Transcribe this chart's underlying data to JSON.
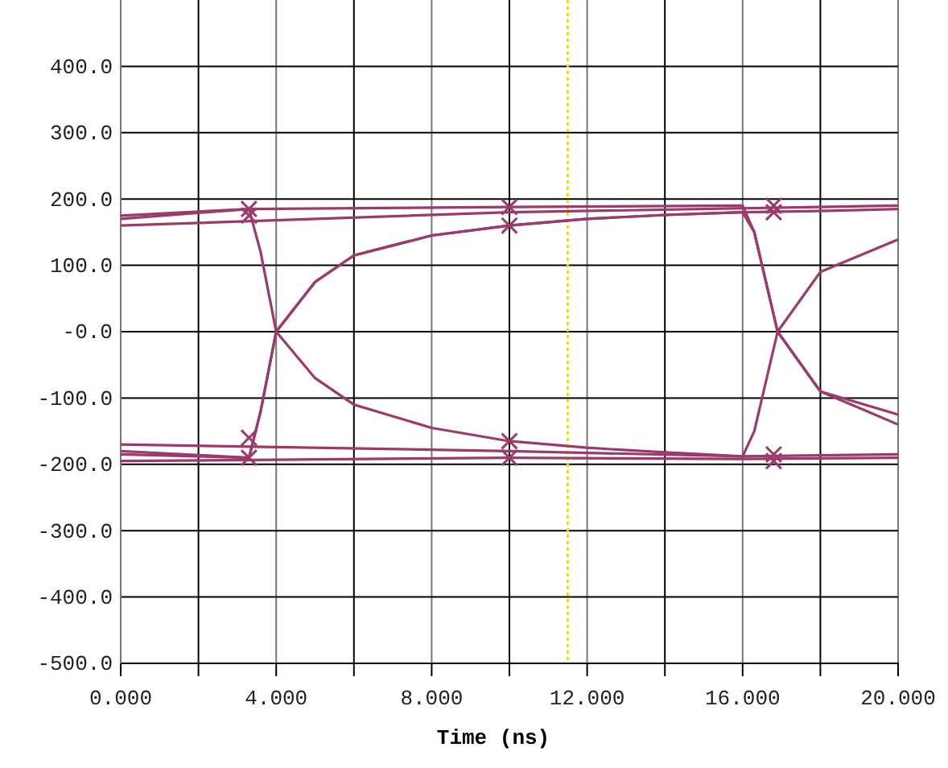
{
  "chart_data": {
    "type": "line",
    "xlabel": "Time (ns)",
    "xlim": [
      0,
      20
    ],
    "xticks": [
      {
        "value": 0,
        "label": "0.000"
      },
      {
        "value": 2,
        "label": null
      },
      {
        "value": 4,
        "label": "4.000"
      },
      {
        "value": 6,
        "label": null
      },
      {
        "value": 8,
        "label": "8.000"
      },
      {
        "value": 10,
        "label": null
      },
      {
        "value": 12,
        "label": "12.000"
      },
      {
        "value": 14,
        "label": null
      },
      {
        "value": 16,
        "label": "16.000"
      },
      {
        "value": 18,
        "label": null
      },
      {
        "value": 20,
        "label": "20.000"
      }
    ],
    "ylim": [
      -500,
      500
    ],
    "yticks": [
      {
        "value": 400,
        "label": "400.0"
      },
      {
        "value": 300,
        "label": "300.0"
      },
      {
        "value": 200,
        "label": "200.0"
      },
      {
        "value": 100,
        "label": "100.0"
      },
      {
        "value": 0,
        "label": "-0.0"
      },
      {
        "value": -100,
        "label": "-100.0"
      },
      {
        "value": -200,
        "label": "-200.0"
      },
      {
        "value": -300,
        "label": "-300.0"
      },
      {
        "value": -400,
        "label": "-400.0"
      },
      {
        "value": -500,
        "label": "-500.0"
      }
    ],
    "grid": true,
    "line_style": "solid",
    "marker": "none",
    "ref_lines": [
      {
        "axis": "x",
        "value": 11.5,
        "color": "#f0e000",
        "line_style": "dotted"
      }
    ],
    "series": [
      {
        "color": "#9b3a6b",
        "x": [
          0,
          3.3,
          10,
          16,
          16.3,
          16.9,
          18,
          20
        ],
        "values": [
          175,
          185,
          188,
          190,
          150,
          0,
          -90,
          -140
        ]
      },
      {
        "color": "#9b3a6b",
        "x": [
          0,
          3.3,
          3.6,
          4,
          5,
          6,
          8,
          10,
          12,
          14,
          16,
          16.3,
          16.9,
          18,
          20
        ],
        "values": [
          170,
          185,
          120,
          0,
          -70,
          -110,
          -145,
          -165,
          -175,
          -182,
          -188,
          -150,
          0,
          90,
          139
        ]
      },
      {
        "color": "#9b3a6b",
        "x": [
          0,
          3.3,
          3.6,
          4,
          5,
          6,
          8,
          10,
          12,
          14,
          16,
          18,
          20
        ],
        "values": [
          -185,
          -190,
          -120,
          0,
          75,
          115,
          145,
          160,
          170,
          176,
          180,
          182,
          185
        ]
      },
      {
        "color": "#9b3a6b",
        "x": [
          0,
          3.3,
          3.6,
          4,
          5,
          6,
          8,
          10,
          12,
          14,
          16,
          16.3,
          16.9,
          18,
          20
        ],
        "values": [
          -180,
          -190,
          -120,
          0,
          75,
          115,
          145,
          160,
          170,
          176,
          180,
          150,
          0,
          -90,
          -125
        ]
      },
      {
        "color": "#9b3a6b",
        "x": [
          0,
          10,
          16,
          20
        ],
        "values": [
          -195,
          -190,
          -192,
          -190
        ]
      },
      {
        "color": "#9b3a6b",
        "x": [
          0,
          10,
          20
        ],
        "values": [
          160,
          180,
          190
        ]
      },
      {
        "color": "#9b3a6b",
        "x": [
          0,
          10,
          16,
          20
        ],
        "values": [
          -170,
          -180,
          -188,
          -185
        ]
      },
      {
        "type": "scatter",
        "marker": "cross",
        "color": "#9b3a6b",
        "x": [
          3.3,
          3.3,
          3.3,
          3.3,
          10,
          10,
          10,
          10,
          16.8,
          16.8,
          16.8,
          16.8
        ],
        "values": [
          185,
          175,
          -160,
          -190,
          188,
          160,
          -165,
          -190,
          190,
          180,
          -185,
          -195
        ]
      }
    ]
  }
}
